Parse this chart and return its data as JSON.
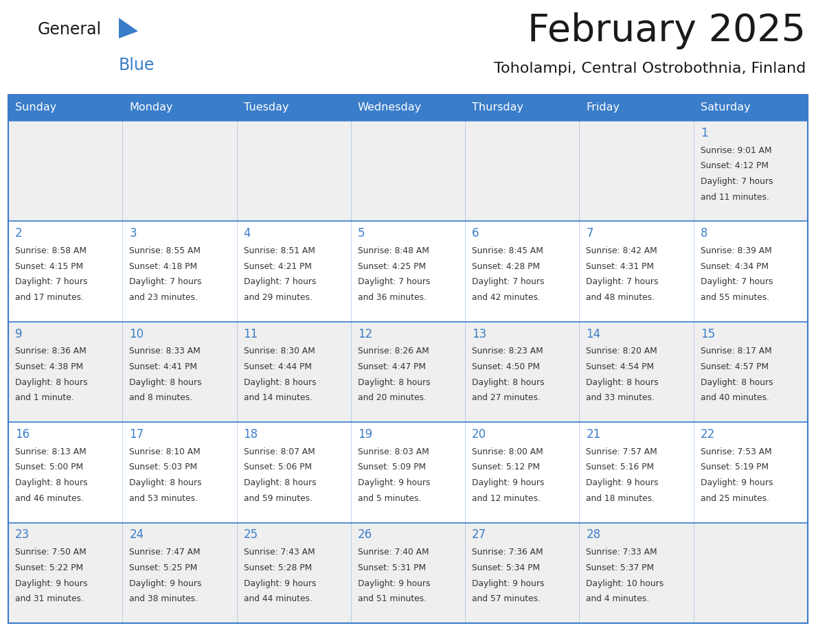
{
  "title": "February 2025",
  "subtitle": "Toholampi, Central Ostrobothnia, Finland",
  "header_bg": "#3A7DC9",
  "header_text_color": "#FFFFFF",
  "row_bg_odd": "#EFEFEF",
  "row_bg_even": "#FFFFFF",
  "border_color": "#3A7DC9",
  "title_color": "#1A1A1A",
  "subtitle_color": "#1A1A1A",
  "day_number_color": "#3A7DC9",
  "cell_text_color": "#333333",
  "day_headers": [
    "Sunday",
    "Monday",
    "Tuesday",
    "Wednesday",
    "Thursday",
    "Friday",
    "Saturday"
  ],
  "logo_general_color": "#1A1A1A",
  "logo_blue_color": "#3A7DC9",
  "logo_triangle_color": "#3A7DC9",
  "calendar": [
    [
      null,
      null,
      null,
      null,
      null,
      null,
      {
        "day": 1,
        "sunrise": "9:01 AM",
        "sunset": "4:12 PM",
        "daylight": "7 hours and 11 minutes."
      }
    ],
    [
      {
        "day": 2,
        "sunrise": "8:58 AM",
        "sunset": "4:15 PM",
        "daylight": "7 hours and 17 minutes."
      },
      {
        "day": 3,
        "sunrise": "8:55 AM",
        "sunset": "4:18 PM",
        "daylight": "7 hours and 23 minutes."
      },
      {
        "day": 4,
        "sunrise": "8:51 AM",
        "sunset": "4:21 PM",
        "daylight": "7 hours and 29 minutes."
      },
      {
        "day": 5,
        "sunrise": "8:48 AM",
        "sunset": "4:25 PM",
        "daylight": "7 hours and 36 minutes."
      },
      {
        "day": 6,
        "sunrise": "8:45 AM",
        "sunset": "4:28 PM",
        "daylight": "7 hours and 42 minutes."
      },
      {
        "day": 7,
        "sunrise": "8:42 AM",
        "sunset": "4:31 PM",
        "daylight": "7 hours and 48 minutes."
      },
      {
        "day": 8,
        "sunrise": "8:39 AM",
        "sunset": "4:34 PM",
        "daylight": "7 hours and 55 minutes."
      }
    ],
    [
      {
        "day": 9,
        "sunrise": "8:36 AM",
        "sunset": "4:38 PM",
        "daylight": "8 hours and 1 minute."
      },
      {
        "day": 10,
        "sunrise": "8:33 AM",
        "sunset": "4:41 PM",
        "daylight": "8 hours and 8 minutes."
      },
      {
        "day": 11,
        "sunrise": "8:30 AM",
        "sunset": "4:44 PM",
        "daylight": "8 hours and 14 minutes."
      },
      {
        "day": 12,
        "sunrise": "8:26 AM",
        "sunset": "4:47 PM",
        "daylight": "8 hours and 20 minutes."
      },
      {
        "day": 13,
        "sunrise": "8:23 AM",
        "sunset": "4:50 PM",
        "daylight": "8 hours and 27 minutes."
      },
      {
        "day": 14,
        "sunrise": "8:20 AM",
        "sunset": "4:54 PM",
        "daylight": "8 hours and 33 minutes."
      },
      {
        "day": 15,
        "sunrise": "8:17 AM",
        "sunset": "4:57 PM",
        "daylight": "8 hours and 40 minutes."
      }
    ],
    [
      {
        "day": 16,
        "sunrise": "8:13 AM",
        "sunset": "5:00 PM",
        "daylight": "8 hours and 46 minutes."
      },
      {
        "day": 17,
        "sunrise": "8:10 AM",
        "sunset": "5:03 PM",
        "daylight": "8 hours and 53 minutes."
      },
      {
        "day": 18,
        "sunrise": "8:07 AM",
        "sunset": "5:06 PM",
        "daylight": "8 hours and 59 minutes."
      },
      {
        "day": 19,
        "sunrise": "8:03 AM",
        "sunset": "5:09 PM",
        "daylight": "9 hours and 5 minutes."
      },
      {
        "day": 20,
        "sunrise": "8:00 AM",
        "sunset": "5:12 PM",
        "daylight": "9 hours and 12 minutes."
      },
      {
        "day": 21,
        "sunrise": "7:57 AM",
        "sunset": "5:16 PM",
        "daylight": "9 hours and 18 minutes."
      },
      {
        "day": 22,
        "sunrise": "7:53 AM",
        "sunset": "5:19 PM",
        "daylight": "9 hours and 25 minutes."
      }
    ],
    [
      {
        "day": 23,
        "sunrise": "7:50 AM",
        "sunset": "5:22 PM",
        "daylight": "9 hours and 31 minutes."
      },
      {
        "day": 24,
        "sunrise": "7:47 AM",
        "sunset": "5:25 PM",
        "daylight": "9 hours and 38 minutes."
      },
      {
        "day": 25,
        "sunrise": "7:43 AM",
        "sunset": "5:28 PM",
        "daylight": "9 hours and 44 minutes."
      },
      {
        "day": 26,
        "sunrise": "7:40 AM",
        "sunset": "5:31 PM",
        "daylight": "9 hours and 51 minutes."
      },
      {
        "day": 27,
        "sunrise": "7:36 AM",
        "sunset": "5:34 PM",
        "daylight": "9 hours and 57 minutes."
      },
      {
        "day": 28,
        "sunrise": "7:33 AM",
        "sunset": "5:37 PM",
        "daylight": "10 hours and 4 minutes."
      },
      null
    ]
  ]
}
